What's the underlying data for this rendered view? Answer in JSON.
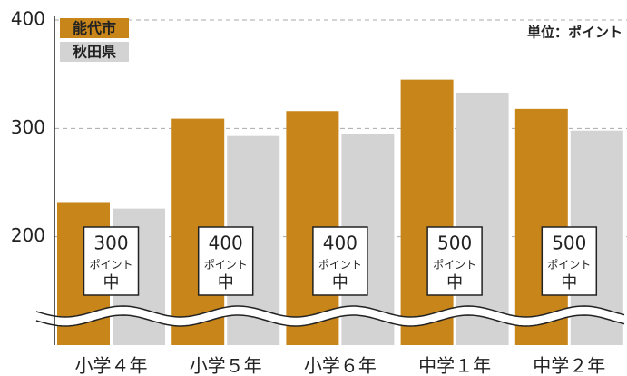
{
  "chart_data": {
    "type": "bar",
    "unit_label": "単位：ポイント",
    "categories": [
      "小学４年",
      "小学５年",
      "小学６年",
      "中学１年",
      "中学２年"
    ],
    "series": [
      {
        "name": "能代市",
        "color": "#c8861a",
        "values": [
          232,
          309,
          316,
          345,
          318
        ]
      },
      {
        "name": "秋田県",
        "color": "#d3d3d4",
        "values": [
          226,
          293,
          295,
          333,
          298
        ]
      }
    ],
    "ylim": [
      100,
      400
    ],
    "yticks": [
      200,
      300,
      400
    ],
    "grid": true,
    "annotations": [
      "300",
      "400",
      "400",
      "500",
      "500"
    ],
    "annotation_unit": "ポイント",
    "annotation_suffix": "中"
  }
}
